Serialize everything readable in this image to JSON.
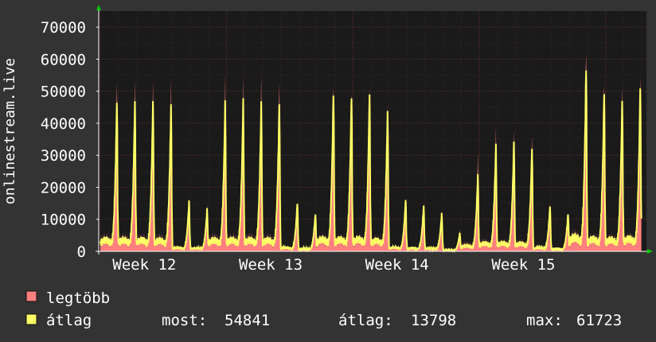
{
  "chart_data": {
    "type": "line",
    "ylabel": "onlinestream.live",
    "ylim": [
      0,
      75000
    ],
    "y_ticks": [
      0,
      10000,
      20000,
      30000,
      40000,
      50000,
      60000,
      70000
    ],
    "x_ticks": [
      "Week 12",
      "Week 13",
      "Week 14",
      "Week 15"
    ],
    "grid": true,
    "samples_per_day": 48,
    "daily_peaks": {
      "max": [
        57000,
        57000,
        56000,
        56000,
        17500,
        15000,
        56500,
        57000,
        58000,
        56000,
        16500,
        12500,
        56500,
        54500,
        55500,
        49500,
        17500,
        15500,
        13000,
        7000,
        31500,
        40000,
        39500,
        38000,
        16000,
        13000,
        68000,
        57500,
        56000,
        59000
      ],
      "avg": [
        50000,
        50000,
        49500,
        48000,
        16500,
        14000,
        49000,
        50000,
        49500,
        49000,
        16000,
        12500,
        53000,
        52000,
        53000,
        47000,
        17000,
        15000,
        12500,
        6000,
        25000,
        35000,
        36000,
        34000,
        15000,
        12500,
        61500,
        53500,
        51000,
        54841
      ]
    },
    "series": [
      {
        "name": "legtöbb",
        "color": "#ff7f7f"
      },
      {
        "name": "átlag",
        "color": "#ffff66"
      }
    ]
  },
  "legend": {
    "max_label": "legtöbb",
    "avg_label": "átlag",
    "stats": [
      {
        "label": "most:",
        "value": "54841"
      },
      {
        "label": "átlag:",
        "value": "13798"
      },
      {
        "label": "max:",
        "value": "61723"
      }
    ]
  },
  "colors": {
    "background": "#333333",
    "plot_background": "#1a1a1a",
    "grid": "#5a2a2a",
    "max_fill": "#ff7f7f",
    "avg_line": "#ffff66"
  }
}
